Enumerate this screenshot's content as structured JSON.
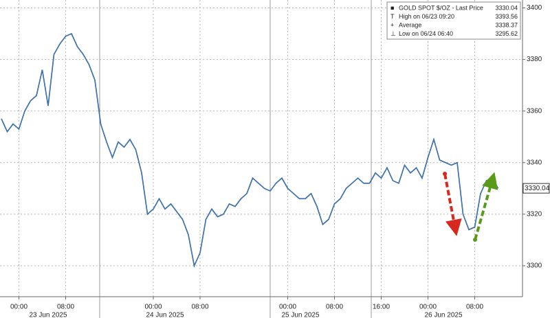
{
  "chart_data": {
    "type": "line",
    "categories": [
      null,
      null,
      null,
      "00:00",
      null,
      null,
      null,
      null,
      null,
      null,
      null,
      "08:00",
      null,
      null,
      null,
      null,
      null,
      null,
      null,
      null,
      null,
      null,
      null,
      null,
      null,
      null,
      "00:00",
      null,
      null,
      null,
      null,
      null,
      null,
      null,
      "08:00",
      null,
      null,
      null,
      null,
      null,
      null,
      null,
      null,
      null,
      null,
      null,
      null,
      null,
      null,
      "00:00",
      null,
      null,
      null,
      null,
      null,
      null,
      null,
      "08:00",
      null,
      null,
      null,
      null,
      null,
      null,
      null,
      "16:00",
      null,
      null,
      null,
      null,
      null,
      null,
      null,
      "00:00",
      null,
      null,
      null,
      null,
      null,
      null,
      null,
      "08:00",
      null,
      null,
      null,
      null
    ],
    "day_labels": [
      "23 Jun 2025",
      "24 Jun 2025",
      "25 Jun 2025",
      "26 Jun 2025"
    ],
    "series": [
      {
        "name": "GOLD SPOT $/OZ - Last Price",
        "color": "#1f4f8f",
        "values": [
          3357,
          3352,
          3355,
          3353,
          3360,
          3364,
          3366,
          3376,
          3362,
          3382,
          3386,
          3389,
          3390,
          3385,
          3382,
          3378,
          3372,
          3355,
          3348,
          3342,
          3348,
          3346,
          3349,
          3345,
          3336,
          3320,
          3322,
          3326,
          3322,
          3324,
          3321,
          3318,
          3312,
          3300,
          3305,
          3318,
          3322,
          3319,
          3320,
          3324,
          3323,
          3326,
          3328,
          3334,
          3332,
          3330,
          3329,
          3332,
          3334,
          3330,
          3328,
          3326,
          3326,
          3328,
          3323,
          3316,
          3318,
          3324,
          3326,
          3330,
          3332,
          3334,
          3332,
          3332,
          3336,
          3334,
          3338,
          3333,
          3332,
          3339,
          3336,
          3338,
          3334,
          3342,
          3349,
          3341,
          3340,
          3339,
          3340,
          3320,
          3314,
          3315,
          3328,
          3333,
          3334,
          3330.04
        ]
      }
    ],
    "legend": [
      {
        "label": "GOLD SPOT $/OZ - Last Price",
        "value": "3330.04"
      },
      {
        "label": "High on 06/23 09:20",
        "value": "3393.56"
      },
      {
        "label": "Average",
        "value": "3338.37"
      },
      {
        "label": "Low on 06/24 06:40",
        "value": "3295.62"
      }
    ],
    "ylim": [
      3288,
      3402
    ],
    "yticks": [
      3300,
      3320,
      3340,
      3360,
      3380,
      3400
    ],
    "grid": true
  }
}
